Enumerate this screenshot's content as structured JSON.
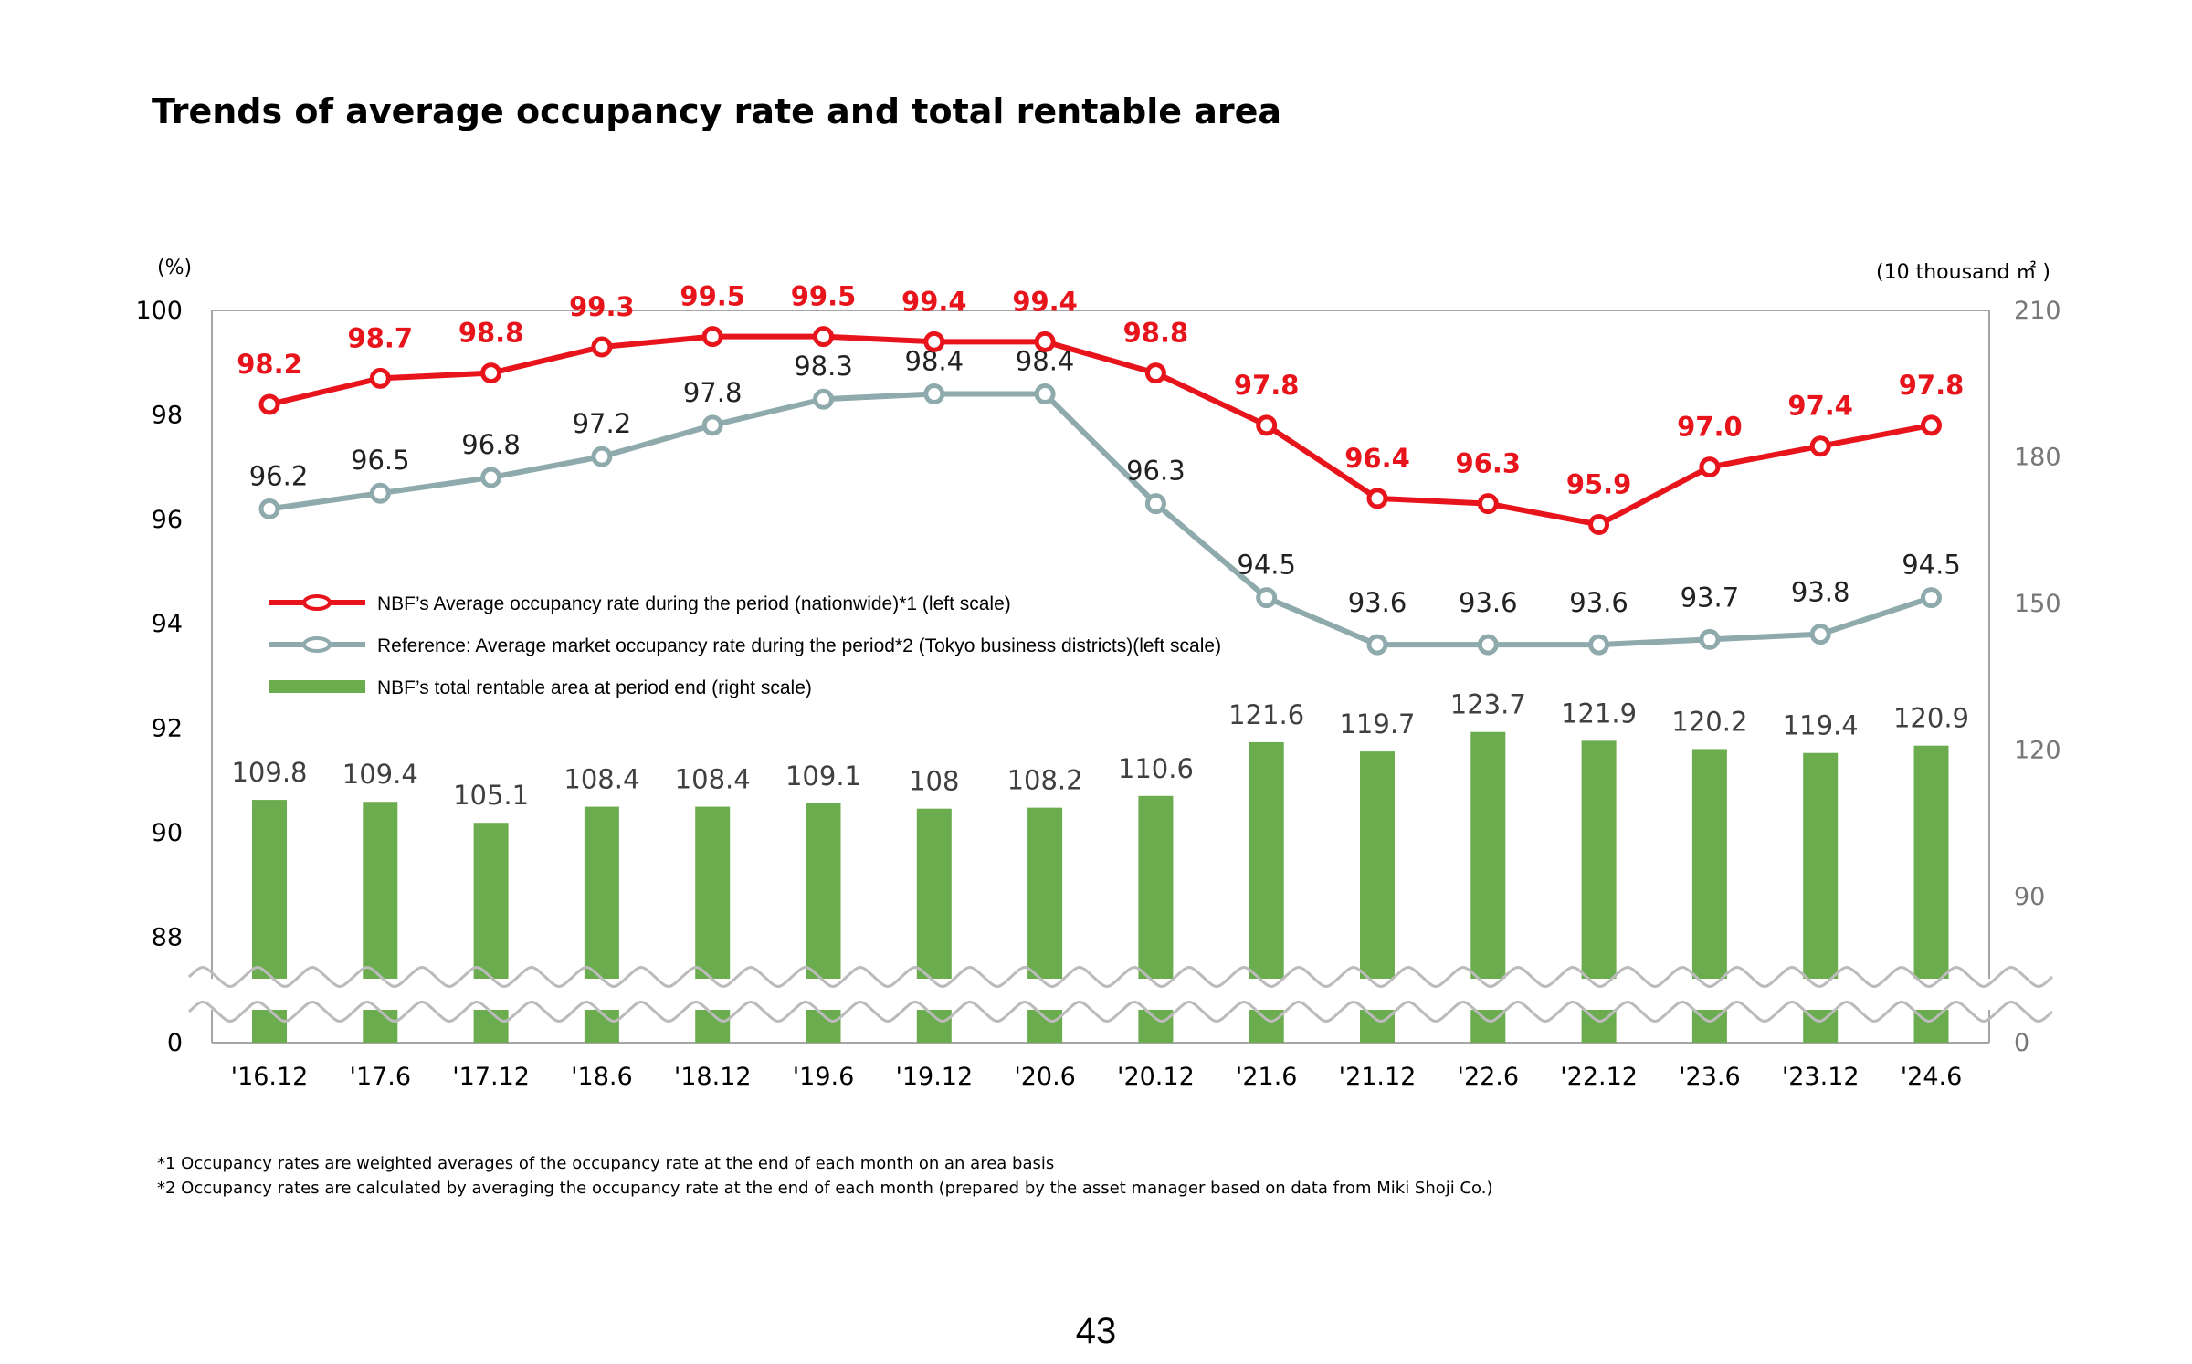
{
  "title": "Trends of average occupancy rate and total rentable area",
  "footnotes": [
    "*1 Occupancy rates are weighted averages of the occupancy rate at the end of each month on an area basis",
    "*2 Occupancy rates are calculated by averaging the occupancy rate at the end of each month (prepared by the asset manager based on data from Miki Shoji Co.)"
  ],
  "page_number": "43",
  "colors": {
    "nbf": "#e8141c",
    "market": "#8faaac",
    "area": "#6aac4e",
    "axis": "#a6a6a6"
  },
  "chart_data": {
    "type": "bar+line",
    "categories": [
      "'16.12",
      "'17.6",
      "'17.12",
      "'18.6",
      "'18.12",
      "'19.6",
      "'19.12",
      "'20.6",
      "'20.12",
      "'21.6",
      "'21.12",
      "'22.6",
      "'22.12",
      "'23.6",
      "'23.12",
      "'24.6"
    ],
    "left_axis": {
      "unit_label": "(%)",
      "ticks": [
        "100",
        "98",
        "96",
        "94",
        "92",
        "90",
        "88",
        "0"
      ],
      "range": [
        88,
        100
      ],
      "broken": true
    },
    "right_axis": {
      "unit_label": "(10 thousand ㎡ )",
      "ticks": [
        "210",
        "180",
        "150",
        "120",
        "90",
        "0"
      ],
      "range": [
        60,
        210
      ],
      "broken": true
    },
    "series": [
      {
        "name": "NBF’s Average occupancy rate during the period (nationwide)*1  (left scale)",
        "type": "line",
        "axis": "left",
        "color": "#e8141c",
        "values": [
          98.2,
          98.7,
          98.8,
          99.3,
          99.5,
          99.5,
          99.4,
          99.4,
          98.8,
          97.8,
          96.4,
          96.3,
          95.9,
          97.0,
          97.4,
          97.8
        ],
        "labels": [
          "98.2",
          "98.7",
          "98.8",
          "99.3",
          "99.5",
          "99.5",
          "99.4",
          "99.4",
          "98.8",
          "97.8",
          "96.4",
          "96.3",
          "95.9",
          "97.0",
          "97.4",
          "97.8"
        ]
      },
      {
        "name": "Reference: Average market occupancy rate during the period*2 (Tokyo business districts)(left scale)",
        "type": "line",
        "axis": "left",
        "color": "#8faaac",
        "values": [
          96.2,
          96.5,
          96.8,
          97.2,
          97.8,
          98.3,
          98.4,
          98.4,
          96.3,
          94.5,
          93.6,
          93.6,
          93.6,
          93.7,
          93.8,
          94.5
        ],
        "labels": [
          "96.2",
          "96.5",
          "96.8",
          "97.2",
          "97.8",
          "98.3",
          "98.4",
          "98.4",
          "96.3",
          "94.5",
          "93.6",
          "93.6",
          "93.6",
          "93.7",
          "93.8",
          "94.5"
        ]
      },
      {
        "name": "NBF’s total rentable area at period end (right scale)",
        "type": "bar",
        "axis": "right",
        "color": "#6aac4e",
        "values": [
          109.8,
          109.4,
          105.1,
          108.4,
          108.4,
          109.1,
          108,
          108.2,
          110.6,
          121.6,
          119.7,
          123.7,
          121.9,
          120.2,
          119.4,
          120.9
        ],
        "labels": [
          "109.8",
          "109.4",
          "105.1",
          "108.4",
          "108.4",
          "109.1",
          "108",
          "108.2",
          "110.6",
          "121.6",
          "119.7",
          "123.7",
          "121.9",
          "120.2",
          "119.4",
          "120.9"
        ]
      }
    ]
  }
}
